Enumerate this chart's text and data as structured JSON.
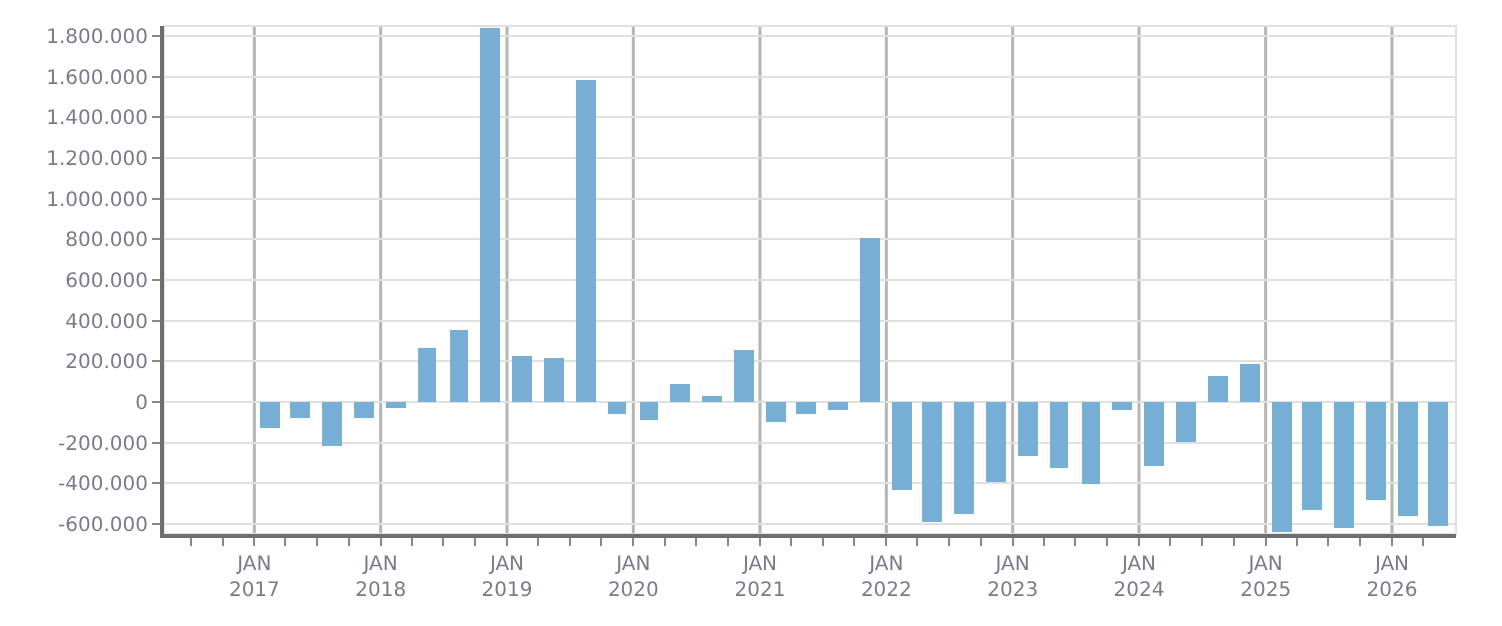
{
  "chart_data": {
    "type": "bar",
    "color": "#77b0d4",
    "grid": true,
    "x": [
      "2017-02-15",
      "2017-05-15",
      "2017-08-15",
      "2017-11-15",
      "2018-02-15",
      "2018-05-15",
      "2018-08-15",
      "2018-11-15",
      "2019-02-15",
      "2019-05-15",
      "2019-08-15",
      "2019-11-15",
      "2020-02-15",
      "2020-05-15",
      "2020-08-15",
      "2020-11-15",
      "2021-02-15",
      "2021-05-15",
      "2021-08-15",
      "2021-11-15",
      "2022-02-15",
      "2022-05-15",
      "2022-08-15",
      "2022-11-15",
      "2023-02-15",
      "2023-05-15",
      "2023-08-15",
      "2023-11-15",
      "2024-02-15",
      "2024-05-15",
      "2024-08-15",
      "2024-11-15",
      "2025-02-15",
      "2025-05-15",
      "2025-08-15",
      "2025-11-15",
      "2026-02-15",
      "2026-05-15"
    ],
    "values": [
      -130000,
      -80000,
      -220000,
      -80000,
      -30000,
      270000,
      350000,
      1840000,
      230000,
      220000,
      1580000,
      -60000,
      -90000,
      90000,
      30000,
      260000,
      -100000,
      -60000,
      -40000,
      810000,
      -430000,
      -590000,
      -550000,
      -390000,
      -270000,
      -330000,
      -400000,
      -40000,
      -320000,
      -200000,
      130000,
      190000,
      -640000,
      -530000,
      -620000,
      -480000,
      -560000,
      -610000
    ],
    "xlim": [
      "2016-04-15",
      "2026-07-05"
    ],
    "xticks": [
      {
        "value": "2016-07-01",
        "label": null
      },
      {
        "value": "2016-10-01",
        "label": null
      },
      {
        "value": "2017-01-01",
        "label": "JAN\n2017"
      },
      {
        "value": "2017-04-01",
        "label": null
      },
      {
        "value": "2017-07-01",
        "label": null
      },
      {
        "value": "2017-10-01",
        "label": null
      },
      {
        "value": "2018-01-01",
        "label": "JAN\n2018"
      },
      {
        "value": "2018-04-01",
        "label": null
      },
      {
        "value": "2018-07-01",
        "label": null
      },
      {
        "value": "2018-10-01",
        "label": null
      },
      {
        "value": "2019-01-01",
        "label": "JAN\n2019"
      },
      {
        "value": "2019-04-01",
        "label": null
      },
      {
        "value": "2019-07-01",
        "label": null
      },
      {
        "value": "2019-10-01",
        "label": null
      },
      {
        "value": "2020-01-01",
        "label": "JAN\n2020"
      },
      {
        "value": "2020-04-01",
        "label": null
      },
      {
        "value": "2020-07-01",
        "label": null
      },
      {
        "value": "2020-10-01",
        "label": null
      },
      {
        "value": "2021-01-01",
        "label": "JAN\n2021"
      },
      {
        "value": "2021-04-01",
        "label": null
      },
      {
        "value": "2021-07-01",
        "label": null
      },
      {
        "value": "2021-10-01",
        "label": null
      },
      {
        "value": "2022-01-01",
        "label": "JAN\n2022"
      },
      {
        "value": "2022-04-01",
        "label": null
      },
      {
        "value": "2022-07-01",
        "label": null
      },
      {
        "value": "2022-10-01",
        "label": null
      },
      {
        "value": "2023-01-01",
        "label": "JAN\n2023"
      },
      {
        "value": "2023-04-01",
        "label": null
      },
      {
        "value": "2023-07-01",
        "label": null
      },
      {
        "value": "2023-10-01",
        "label": null
      },
      {
        "value": "2024-01-01",
        "label": "JAN\n2024"
      },
      {
        "value": "2024-04-01",
        "label": null
      },
      {
        "value": "2024-07-01",
        "label": null
      },
      {
        "value": "2024-10-01",
        "label": null
      },
      {
        "value": "2025-01-01",
        "label": "JAN\n2025"
      },
      {
        "value": "2025-04-01",
        "label": null
      },
      {
        "value": "2025-07-01",
        "label": null
      },
      {
        "value": "2025-10-01",
        "label": null
      },
      {
        "value": "2026-01-01",
        "label": "JAN\n2026"
      },
      {
        "value": "2026-04-01",
        "label": null
      }
    ],
    "ylim": [
      -650000,
      1850000
    ],
    "yticks": [
      {
        "value": -600000,
        "label": "-600.000"
      },
      {
        "value": -400000,
        "label": "-400.000"
      },
      {
        "value": -200000,
        "label": "-200.000"
      },
      0,
      {
        "value": 200000,
        "label": "200.000"
      },
      {
        "value": 400000,
        "label": "400.000"
      },
      {
        "value": 600000,
        "label": "600.000"
      },
      {
        "value": 800000,
        "label": "800.000"
      },
      {
        "value": 1000000,
        "label": "1.000.000"
      },
      {
        "value": 1200000,
        "label": "1.200.000"
      },
      {
        "value": 1400000,
        "label": "1.400.000"
      },
      {
        "value": 1600000,
        "label": "1.600.000"
      },
      {
        "value": 1800000,
        "label": "1.800.000"
      }
    ]
  }
}
